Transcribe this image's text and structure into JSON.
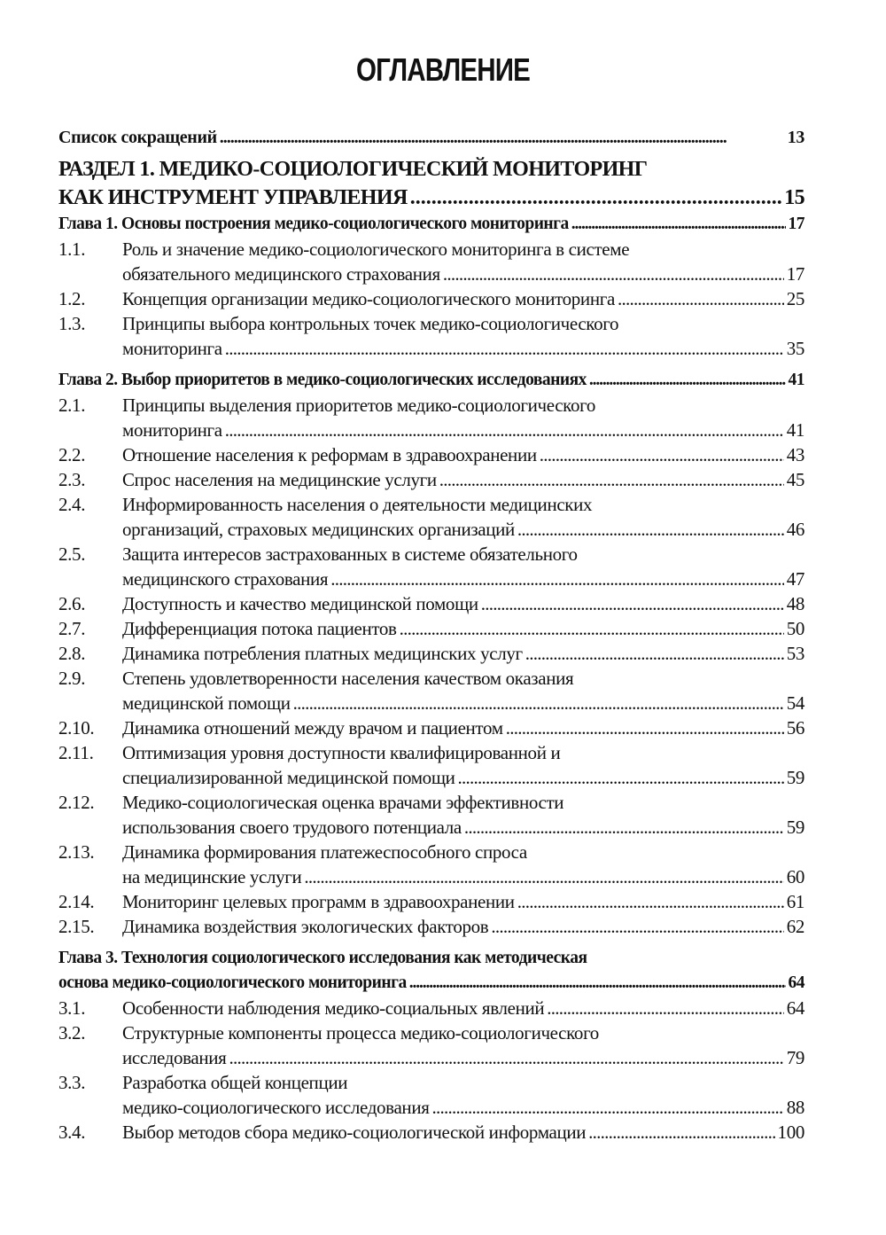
{
  "title": "ОГЛАВЛЕНИЕ",
  "entries": [
    {
      "kind": "top",
      "num": "",
      "lines": [
        "Список сокращений"
      ],
      "page": "13"
    },
    {
      "kind": "section",
      "num": "",
      "lines": [
        "РАЗДЕЛ 1. МЕДИКО-СОЦИОЛОГИЧЕСКИЙ МОНИТОРИНГ",
        "КАК ИНСТРУМЕНТ УПРАВЛЕНИЯ"
      ],
      "page": "15"
    },
    {
      "kind": "chapter",
      "num": "",
      "lines": [
        "Глава 1. Основы построения медико-социологического мониторинга"
      ],
      "page": "17"
    },
    {
      "kind": "item",
      "num": "1.1.",
      "lines": [
        "Роль и значение медико-социологического мониторинга в системе",
        "обязательного медицинского страхования"
      ],
      "page": "17"
    },
    {
      "kind": "item",
      "num": "1.2.",
      "lines": [
        "Концепция организации медико-социологического мониторинга"
      ],
      "page": "25"
    },
    {
      "kind": "item",
      "num": "1.3.",
      "lines": [
        "Принципы выбора контрольных точек медико-социологического",
        "мониторинга"
      ],
      "page": "35"
    },
    {
      "kind": "chapter",
      "num": "",
      "lines": [
        "Глава 2. Выбор приоритетов в медико-социологических исследованиях"
      ],
      "page": "41"
    },
    {
      "kind": "item",
      "num": "2.1.",
      "lines": [
        "Принципы выделения приоритетов медико-социологического",
        "мониторинга"
      ],
      "page": "41"
    },
    {
      "kind": "item",
      "num": "2.2.",
      "lines": [
        "Отношение населения к реформам в здравоохранении"
      ],
      "page": "43"
    },
    {
      "kind": "item",
      "num": "2.3.",
      "lines": [
        "Спрос населения на медицинские услуги"
      ],
      "page": "45"
    },
    {
      "kind": "item",
      "num": "2.4.",
      "lines": [
        "Информированность населения о деятельности медицинских",
        "организаций, страховых медицинских организаций"
      ],
      "page": "46"
    },
    {
      "kind": "item",
      "num": "2.5.",
      "lines": [
        "Защита интересов застрахованных в системе обязательного",
        "медицинского страхования"
      ],
      "page": "47"
    },
    {
      "kind": "item",
      "num": "2.6.",
      "lines": [
        "Доступность и качество медицинской помощи"
      ],
      "page": "48"
    },
    {
      "kind": "item",
      "num": "2.7.",
      "lines": [
        "Дифференциация потока пациентов"
      ],
      "page": "50"
    },
    {
      "kind": "item",
      "num": "2.8.",
      "lines": [
        "Динамика потребления платных медицинских услуг"
      ],
      "page": "53"
    },
    {
      "kind": "item",
      "num": "2.9.",
      "lines": [
        "Степень удовлетворенности населения качеством оказания",
        "медицинской помощи"
      ],
      "page": "54"
    },
    {
      "kind": "item",
      "num": "2.10.",
      "lines": [
        "Динамика отношений между врачом и пациентом"
      ],
      "page": "56"
    },
    {
      "kind": "item",
      "num": "2.11.",
      "lines": [
        "Оптимизация уровня доступности квалифицированной и",
        "специализированной медицинской помощи"
      ],
      "page": "59"
    },
    {
      "kind": "item",
      "num": "2.12.",
      "lines": [
        "Медико-социологическая оценка врачами эффективности",
        "использования своего трудового потенциала"
      ],
      "page": "59"
    },
    {
      "kind": "item",
      "num": "2.13.",
      "lines": [
        "Динамика формирования платежеспособного спроса",
        "на медицинские услуги"
      ],
      "page": "60"
    },
    {
      "kind": "item",
      "num": "2.14.",
      "lines": [
        "Мониторинг целевых программ в здравоохранении"
      ],
      "page": "61"
    },
    {
      "kind": "item",
      "num": "2.15.",
      "lines": [
        "Динамика воздействия экологических факторов"
      ],
      "page": "62"
    },
    {
      "kind": "chapter",
      "num": "",
      "lines": [
        "Глава 3. Технология социологического исследования как методическая",
        "основа медико-социологического мониторинга"
      ],
      "page": "64"
    },
    {
      "kind": "item",
      "num": "3.1.",
      "lines": [
        "Особенности наблюдения медико-социальных явлений"
      ],
      "page": "64"
    },
    {
      "kind": "item",
      "num": "3.2.",
      "lines": [
        "Структурные компоненты процесса медико-социологического",
        "исследования"
      ],
      "page": "79"
    },
    {
      "kind": "item",
      "num": "3.3.",
      "lines": [
        "Разработка общей концепции",
        "медико-социологического исследования"
      ],
      "page": "88"
    },
    {
      "kind": "item",
      "num": "3.4.",
      "lines": [
        "Выбор методов сбора медико-социологической информации"
      ],
      "page": "100"
    }
  ]
}
